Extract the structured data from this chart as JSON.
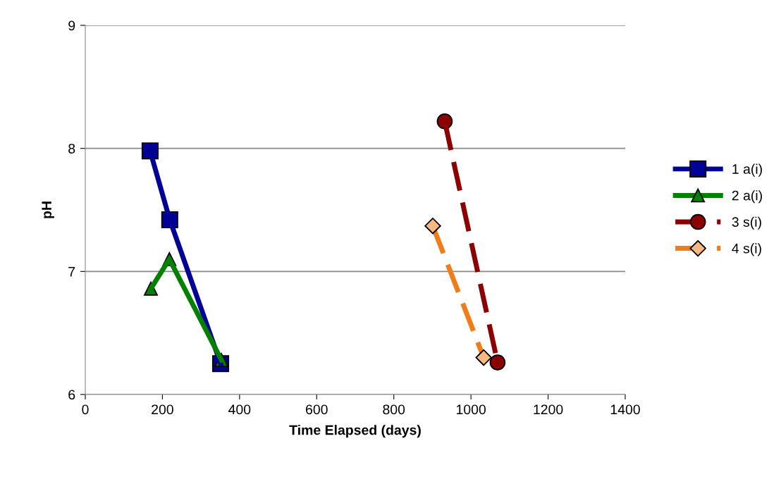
{
  "chart_data": {
    "type": "line",
    "xlabel": "Time Elapsed (days)",
    "ylabel": "pH",
    "xlim": [
      0,
      1400
    ],
    "xticks": [
      0,
      200,
      400,
      600,
      800,
      1000,
      1200,
      1400
    ],
    "ylim": [
      6,
      9
    ],
    "yticks": [
      6,
      7,
      8,
      9
    ],
    "grid": "y",
    "legend": "right",
    "series": [
      {
        "name": "1 a(i)",
        "color": "#000096",
        "marker": "square",
        "line_style": "solid",
        "x": [
          168,
          219,
          351
        ],
        "values": [
          7.98,
          7.42,
          6.25
        ]
      },
      {
        "name": "2 a(i)",
        "color": "#008000",
        "marker": "triangle",
        "line_style": "solid",
        "x": [
          170,
          218,
          353
        ],
        "values": [
          6.86,
          7.1,
          6.28
        ]
      },
      {
        "name": "3 s(i)",
        "color": "#8b0000",
        "marker": "circle",
        "line_style": "dashed",
        "x": [
          932,
          1069
        ],
        "values": [
          8.22,
          6.26
        ]
      },
      {
        "name": "4 s(i)",
        "color": "#f07d1a",
        "marker": "diamond",
        "line_style": "dashed",
        "x": [
          901,
          1033
        ],
        "values": [
          7.37,
          6.3
        ]
      }
    ]
  }
}
